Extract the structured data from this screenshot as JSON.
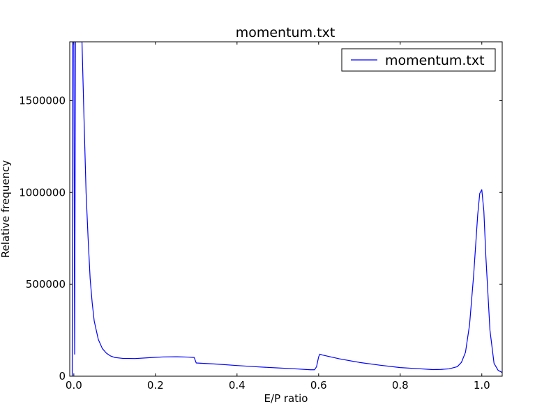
{
  "chart_data": {
    "type": "line",
    "title": "momentum.txt",
    "xlabel": "E/P ratio",
    "ylabel": "Relative frequency",
    "xlim": [
      -0.01,
      1.05
    ],
    "ylim": [
      0,
      1820000
    ],
    "grid": false,
    "legend_position": "top-right",
    "x_ticks": [
      {
        "value": 0.0,
        "label": "0.0"
      },
      {
        "value": 0.2,
        "label": "0.2"
      },
      {
        "value": 0.4,
        "label": "0.4"
      },
      {
        "value": 0.6,
        "label": "0.6"
      },
      {
        "value": 0.8,
        "label": "0.8"
      },
      {
        "value": 1.0,
        "label": "1.0"
      }
    ],
    "y_ticks": [
      {
        "value": 0,
        "label": "0"
      },
      {
        "value": 500000,
        "label": "500000"
      },
      {
        "value": 1000000,
        "label": "1000000"
      },
      {
        "value": 1500000,
        "label": "1500000"
      }
    ],
    "series": [
      {
        "name": "momentum.txt",
        "color": "#0000ff",
        "x": [
          -0.004,
          -0.003,
          0.0,
          0.002,
          0.004,
          0.008,
          0.012,
          0.016,
          0.018,
          0.02,
          0.025,
          0.03,
          0.035,
          0.04,
          0.045,
          0.05,
          0.06,
          0.07,
          0.08,
          0.09,
          0.1,
          0.12,
          0.15,
          0.18,
          0.2,
          0.22,
          0.25,
          0.28,
          0.295,
          0.3,
          0.35,
          0.4,
          0.45,
          0.5,
          0.55,
          0.58,
          0.59,
          0.595,
          0.6,
          0.603,
          0.61,
          0.65,
          0.7,
          0.75,
          0.8,
          0.85,
          0.88,
          0.9,
          0.92,
          0.94,
          0.95,
          0.96,
          0.97,
          0.98,
          0.99,
          0.995,
          1.0,
          1.005,
          1.01,
          1.02,
          1.03,
          1.04,
          1.05
        ],
        "y": [
          0,
          1820000,
          1820000,
          120000,
          1820000,
          1820000,
          1820000,
          1820000,
          1820000,
          1820000,
          1400000,
          1000000,
          750000,
          530000,
          400000,
          300000,
          200000,
          150000,
          125000,
          110000,
          102000,
          97000,
          96000,
          100000,
          103000,
          105000,
          106000,
          104000,
          102000,
          72000,
          66000,
          58000,
          51000,
          45000,
          39000,
          35000,
          35000,
          52000,
          105000,
          120000,
          115000,
          95000,
          75000,
          60000,
          47000,
          40000,
          36000,
          37000,
          40000,
          52000,
          75000,
          130000,
          280000,
          550000,
          880000,
          995000,
          1015000,
          900000,
          650000,
          250000,
          70000,
          32000,
          20000
        ]
      }
    ]
  }
}
